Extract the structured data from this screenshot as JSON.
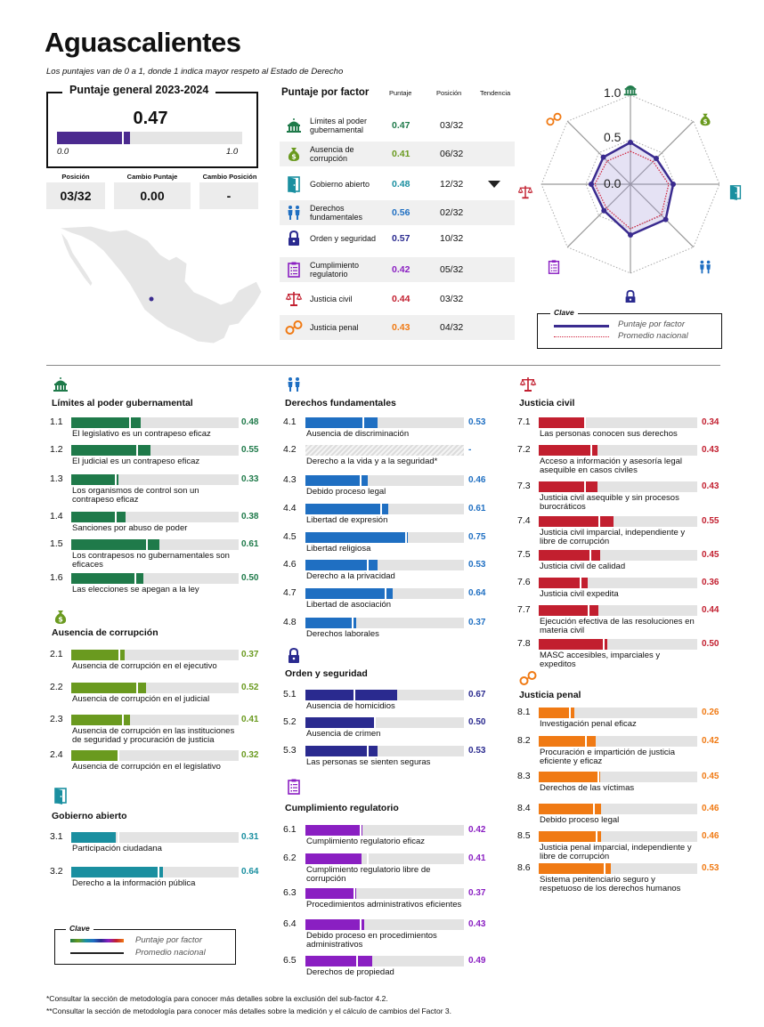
{
  "header": {
    "title": "Aguascalientes",
    "subtitle": "Los puntajes van de 0 a 1, donde 1 indica mayor respeto al Estado de Derecho"
  },
  "overall": {
    "box_title": "Puntaje general 2023-2024",
    "score": "0.47",
    "score_value": 0.47,
    "national_avg_value": 0.42,
    "min_label": "0.0",
    "max_label": "1.0",
    "stats": [
      {
        "label": "Posición",
        "value": "03/32"
      },
      {
        "label": "Cambio Puntaje",
        "value": "0.00"
      },
      {
        "label": "Cambio Posición",
        "value": "-"
      }
    ]
  },
  "factor_table": {
    "title": "Puntaje por factor",
    "col_score": "Puntaje",
    "col_position": "Posición",
    "col_trend": "Tendencia",
    "rows": [
      {
        "name": "Límites al poder gubernamental",
        "score": "0.47",
        "position": "03/32",
        "color": "#1f7a4a",
        "icon": "capitol-icon"
      },
      {
        "name": "Ausencia de corrupción",
        "score": "0.41",
        "position": "06/32",
        "color": "#6a9a1f",
        "icon": "money-bag-icon"
      },
      {
        "name": "Gobierno abierto",
        "score": "0.48",
        "position": "12/32",
        "color": "#1a8fa0",
        "icon": "open-door-icon",
        "trend": "down"
      },
      {
        "name": "Derechos fundamentales",
        "score": "0.56",
        "position": "02/32",
        "color": "#1f6fc2",
        "icon": "people-icon"
      },
      {
        "name": "Orden y seguridad",
        "score": "0.57",
        "position": "10/32",
        "color": "#2a2a8f",
        "icon": "lock-icon"
      },
      {
        "name": "Cumplimiento regulatorio",
        "score": "0.42",
        "position": "05/32",
        "color": "#8a1fc2",
        "icon": "clipboard-icon"
      },
      {
        "name": "Justicia civil",
        "score": "0.44",
        "position": "03/32",
        "color": "#c21f2f",
        "icon": "scales-icon"
      },
      {
        "name": "Justicia penal",
        "score": "0.43",
        "position": "04/32",
        "color": "#f07a14",
        "icon": "handcuffs-icon"
      }
    ]
  },
  "radar": {
    "ticks": [
      "1.0",
      "0.5",
      "0.0"
    ],
    "values": [
      0.47,
      0.41,
      0.48,
      0.56,
      0.57,
      0.42,
      0.44,
      0.43
    ],
    "national": [
      0.37,
      0.36,
      0.43,
      0.49,
      0.5,
      0.38,
      0.4,
      0.37
    ]
  },
  "legend_top": {
    "title": "Clave",
    "factor_label": "Puntaje por factor",
    "national_label": "Promedio nacional"
  },
  "legend_bottom": {
    "title": "Clave",
    "factor_label": "Puntaje por factor",
    "national_label": "Promedio nacional"
  },
  "sections": [
    {
      "id": "1",
      "title": "Límites al poder gubernamental",
      "color": "#1f7a4a",
      "icon": "capitol-icon",
      "items": [
        {
          "num": "1.1",
          "label": "El legislativo es un contrapeso eficaz",
          "value": "0.48",
          "v": 0.48,
          "avg": 0.4
        },
        {
          "num": "1.2",
          "label": "El judicial es un contrapeso eficaz",
          "value": "0.55",
          "v": 0.55,
          "avg": 0.45
        },
        {
          "num": "1.3",
          "label": "Los organismos de control son un contrapeso eficaz",
          "value": "0.33",
          "v": 0.33,
          "avg": 0.3
        },
        {
          "num": "1.4",
          "label": "Sanciones por abuso de poder",
          "value": "0.38",
          "v": 0.38,
          "avg": 0.3
        },
        {
          "num": "1.5",
          "label": "Los contrapesos no gubernamentales son eficaces",
          "value": "0.61",
          "v": 0.61,
          "avg": 0.52
        },
        {
          "num": "1.6",
          "label": "Las elecciones se apegan a la ley",
          "value": "0.50",
          "v": 0.5,
          "avg": 0.44
        }
      ]
    },
    {
      "id": "2",
      "title": "Ausencia de corrupción",
      "color": "#6a9a1f",
      "icon": "money-bag-icon",
      "items": [
        {
          "num": "2.1",
          "label": "Ausencia de corrupción en el ejecutivo",
          "value": "0.37",
          "v": 0.37,
          "avg": 0.33
        },
        {
          "num": "2.2",
          "label": "Ausencia de corrupción en el judicial",
          "value": "0.52",
          "v": 0.52,
          "avg": 0.45
        },
        {
          "num": "2.3",
          "label": "Ausencia de corrupción en las instituciones de seguridad y procuración de justicia",
          "value": "0.41",
          "v": 0.41,
          "avg": 0.35
        },
        {
          "num": "2.4",
          "label": "Ausencia de corrupción en el legislativo",
          "value": "0.32",
          "v": 0.32,
          "avg": 0.32
        }
      ]
    },
    {
      "id": "3",
      "title": "Gobierno abierto",
      "color": "#1a8fa0",
      "icon": "open-door-icon",
      "items": [
        {
          "num": "3.1",
          "label": "Participación ciudadana",
          "value": "0.31",
          "v": 0.31,
          "avg": 0.32
        },
        {
          "num": "3.2",
          "label": "Derecho a la información pública",
          "value": "0.64",
          "v": 0.64,
          "avg": 0.6
        }
      ]
    },
    {
      "id": "4",
      "title": "Derechos fundamentales",
      "color": "#1f6fc2",
      "icon": "people-icon",
      "items": [
        {
          "num": "4.1",
          "label": "Ausencia de discriminación",
          "value": "0.53",
          "v": 0.53,
          "avg": 0.42
        },
        {
          "num": "4.2",
          "label": "Derecho a la vida y a la seguridad*",
          "value": "-",
          "v": null,
          "avg": null
        },
        {
          "num": "4.3",
          "label": "Debido proceso legal",
          "value": "0.46",
          "v": 0.46,
          "avg": 0.4
        },
        {
          "num": "4.4",
          "label": "Libertad de expresión",
          "value": "0.61",
          "v": 0.61,
          "avg": 0.55
        },
        {
          "num": "4.5",
          "label": "Libertad religiosa",
          "value": "0.75",
          "v": 0.75,
          "avg": 0.73
        },
        {
          "num": "4.6",
          "label": "Derecho a la privacidad",
          "value": "0.53",
          "v": 0.53,
          "avg": 0.45
        },
        {
          "num": "4.7",
          "label": "Libertad de asociación",
          "value": "0.64",
          "v": 0.64,
          "avg": 0.58
        },
        {
          "num": "4.8",
          "label": "Derechos laborales",
          "value": "0.37",
          "v": 0.37,
          "avg": 0.34
        }
      ]
    },
    {
      "id": "5",
      "title": "Orden y seguridad",
      "color": "#2a2a8f",
      "icon": "lock-icon",
      "items": [
        {
          "num": "5.1",
          "label": "Ausencia de homicidios",
          "value": "0.67",
          "v": 0.67,
          "avg": 0.35
        },
        {
          "num": "5.2",
          "label": "Ausencia de crimen",
          "value": "0.50",
          "v": 0.5,
          "avg": 0.5
        },
        {
          "num": "5.3",
          "label": "Las personas se sienten seguras",
          "value": "0.53",
          "v": 0.53,
          "avg": 0.45
        }
      ]
    },
    {
      "id": "6",
      "title": "Cumplimiento regulatorio",
      "color": "#8a1fc2",
      "icon": "clipboard-icon",
      "items": [
        {
          "num": "6.1",
          "label": "Cumplimiento regulatorio eficaz",
          "value": "0.42",
          "v": 0.42,
          "avg": 0.4
        },
        {
          "num": "6.2",
          "label": "Cumplimiento regulatorio libre de corrupción",
          "value": "0.41",
          "v": 0.41,
          "avg": 0.45
        },
        {
          "num": "6.3",
          "label": "Procedimientos administrativos eficientes",
          "value": "0.37",
          "v": 0.37,
          "avg": 0.35
        },
        {
          "num": "6.4",
          "label": "Debido proceso en procedimientos administrativos",
          "value": "0.43",
          "v": 0.43,
          "avg": 0.4
        },
        {
          "num": "6.5",
          "label": "Derechos de propiedad",
          "value": "0.49",
          "v": 0.49,
          "avg": 0.37
        }
      ]
    },
    {
      "id": "7",
      "title": "Justicia civil",
      "color": "#c21f2f",
      "icon": "scales-icon",
      "items": [
        {
          "num": "7.1",
          "label": "Las personas conocen sus derechos",
          "value": "0.34",
          "v": 0.34,
          "avg": 0.33
        },
        {
          "num": "7.2",
          "label": "Acceso a información y asesoría legal asequible en casos civiles",
          "value": "0.43",
          "v": 0.43,
          "avg": 0.38
        },
        {
          "num": "7.3",
          "label": "Justicia civil asequible y sin procesos burocráticos",
          "value": "0.43",
          "v": 0.43,
          "avg": 0.33
        },
        {
          "num": "7.4",
          "label": "Justicia civil imparcial, independiente y libre de corrupción",
          "value": "0.55",
          "v": 0.55,
          "avg": 0.44
        },
        {
          "num": "7.5",
          "label": "Justicia civil de calidad",
          "value": "0.45",
          "v": 0.45,
          "avg": 0.37
        },
        {
          "num": "7.6",
          "label": "Justicia civil expedita",
          "value": "0.36",
          "v": 0.36,
          "avg": 0.3
        },
        {
          "num": "7.7",
          "label": "Ejecución efectiva de las resoluciones en materia civil",
          "value": "0.44",
          "v": 0.44,
          "avg": 0.36
        },
        {
          "num": "7.8",
          "label": "MASC accesibles, imparciales y expeditos",
          "value": "0.50",
          "v": 0.5,
          "avg": 0.47
        }
      ]
    },
    {
      "id": "8",
      "title": "Justicia penal",
      "color": "#f07a14",
      "icon": "handcuffs-icon",
      "items": [
        {
          "num": "8.1",
          "label": "Investigación penal eficaz",
          "value": "0.26",
          "v": 0.26,
          "avg": 0.22
        },
        {
          "num": "8.2",
          "label": "Procuración e impartición de justicia eficiente y eficaz",
          "value": "0.42",
          "v": 0.42,
          "avg": 0.34
        },
        {
          "num": "8.3",
          "label": "Derechos de las víctimas",
          "value": "0.45",
          "v": 0.45,
          "avg": 0.43
        },
        {
          "num": "8.4",
          "label": "Debido proceso legal",
          "value": "0.46",
          "v": 0.46,
          "avg": 0.4
        },
        {
          "num": "8.5",
          "label": "Justicia penal imparcial, independiente y libre de corrupción",
          "value": "0.46",
          "v": 0.46,
          "avg": 0.42
        },
        {
          "num": "8.6",
          "label": "Sistema penitenciario seguro y respetuoso de los derechos humanos",
          "value": "0.53",
          "v": 0.53,
          "avg": 0.48
        }
      ]
    }
  ],
  "footnotes": [
    "*Consultar la sección de metodología para conocer más detalles sobre la exclusión del sub-factor 4.2.",
    "**Consultar la sección de metodología para conocer más detalles sobre la medición y el cálculo de cambios del Factor 3."
  ]
}
